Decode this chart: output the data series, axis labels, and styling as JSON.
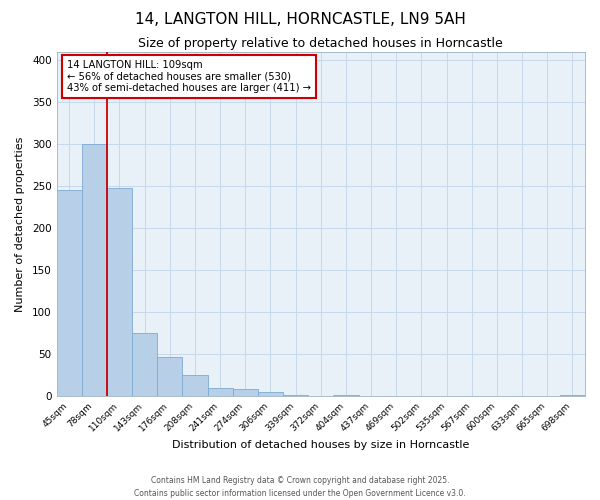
{
  "title_line1": "14, LANGTON HILL, HORNCASTLE, LN9 5AH",
  "title_line2": "Size of property relative to detached houses in Horncastle",
  "xlabel": "Distribution of detached houses by size in Horncastle",
  "ylabel": "Number of detached properties",
  "categories": [
    "45sqm",
    "78sqm",
    "110sqm",
    "143sqm",
    "176sqm",
    "208sqm",
    "241sqm",
    "274sqm",
    "306sqm",
    "339sqm",
    "372sqm",
    "404sqm",
    "437sqm",
    "469sqm",
    "502sqm",
    "535sqm",
    "567sqm",
    "600sqm",
    "633sqm",
    "665sqm",
    "698sqm"
  ],
  "values": [
    245,
    300,
    248,
    75,
    47,
    25,
    10,
    8,
    5,
    1,
    0,
    1,
    0,
    0,
    0,
    0,
    0,
    0,
    0,
    0,
    1
  ],
  "bar_color": "#b8cfe8",
  "bar_edge_color": "#7daad4",
  "grid_color": "#c5d8ea",
  "background_color": "#e8f0f8",
  "vline_index": 2,
  "vline_color": "#cc0000",
  "annotation_line1": "14 LANGTON HILL: 109sqm",
  "annotation_line2": "← 56% of detached houses are smaller (530)",
  "annotation_line3": "43% of semi-detached houses are larger (411) →",
  "annotation_box_color": "#cc0000",
  "ylim": [
    0,
    410
  ],
  "yticks": [
    0,
    50,
    100,
    150,
    200,
    250,
    300,
    350,
    400
  ],
  "footer_line1": "Contains HM Land Registry data © Crown copyright and database right 2025.",
  "footer_line2": "Contains public sector information licensed under the Open Government Licence v3.0.",
  "fig_width": 6.0,
  "fig_height": 5.0,
  "fig_dpi": 100
}
